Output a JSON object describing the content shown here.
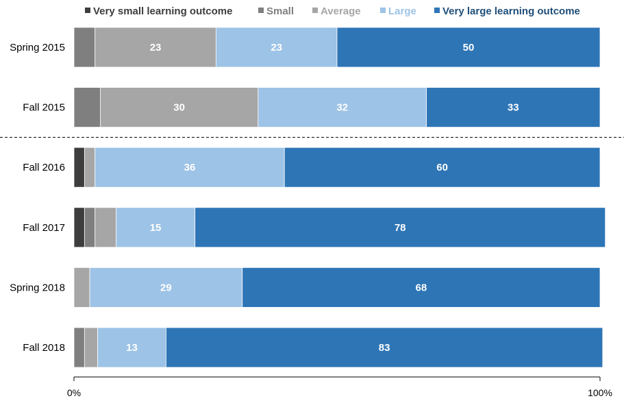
{
  "chart_data": {
    "type": "bar",
    "orientation": "horizontal",
    "stacked": true,
    "categories": [
      "Spring 2015",
      "Fall 2015",
      "Fall 2016",
      "Fall 2017",
      "Spring 2018",
      "Fall 2018"
    ],
    "series": [
      {
        "name": "Very small learning outcome",
        "color": "#3d3d3d",
        "legend_text_color": "#3d3d3d",
        "values": [
          0,
          0,
          2,
          2,
          0,
          0
        ]
      },
      {
        "name": "Small",
        "color": "#7f7f7f",
        "legend_text_color": "#7f7f7f",
        "values": [
          4,
          5,
          0,
          2,
          0,
          2
        ]
      },
      {
        "name": "Average",
        "color": "#a6a6a6",
        "legend_text_color": "#a6a6a6",
        "values": [
          23,
          30,
          2,
          4,
          3,
          2.5
        ]
      },
      {
        "name": "Large",
        "color": "#9dc3e6",
        "legend_text_color": "#9dc3e6",
        "values": [
          23,
          32,
          36,
          15,
          29,
          13
        ]
      },
      {
        "name": "Very large learning outcome",
        "color": "#2e75b6",
        "legend_text_color": "#1f4e79",
        "values": [
          50,
          33,
          60,
          78,
          68,
          83
        ]
      }
    ],
    "data_labels": [
      [
        null,
        null,
        "23",
        "23",
        "50"
      ],
      [
        null,
        null,
        "30",
        "32",
        "33"
      ],
      [
        null,
        null,
        null,
        "36",
        "60"
      ],
      [
        null,
        null,
        null,
        "15",
        "78"
      ],
      [
        null,
        null,
        null,
        "29",
        "68"
      ],
      [
        null,
        null,
        null,
        "13",
        "83"
      ]
    ],
    "xlim": [
      0,
      100
    ],
    "x_ticks": [
      "0%",
      "100%"
    ],
    "title": "",
    "xlabel": "",
    "ylabel": "",
    "legend_position": "top",
    "separator_after_category": "Fall 2015",
    "grid": false
  }
}
